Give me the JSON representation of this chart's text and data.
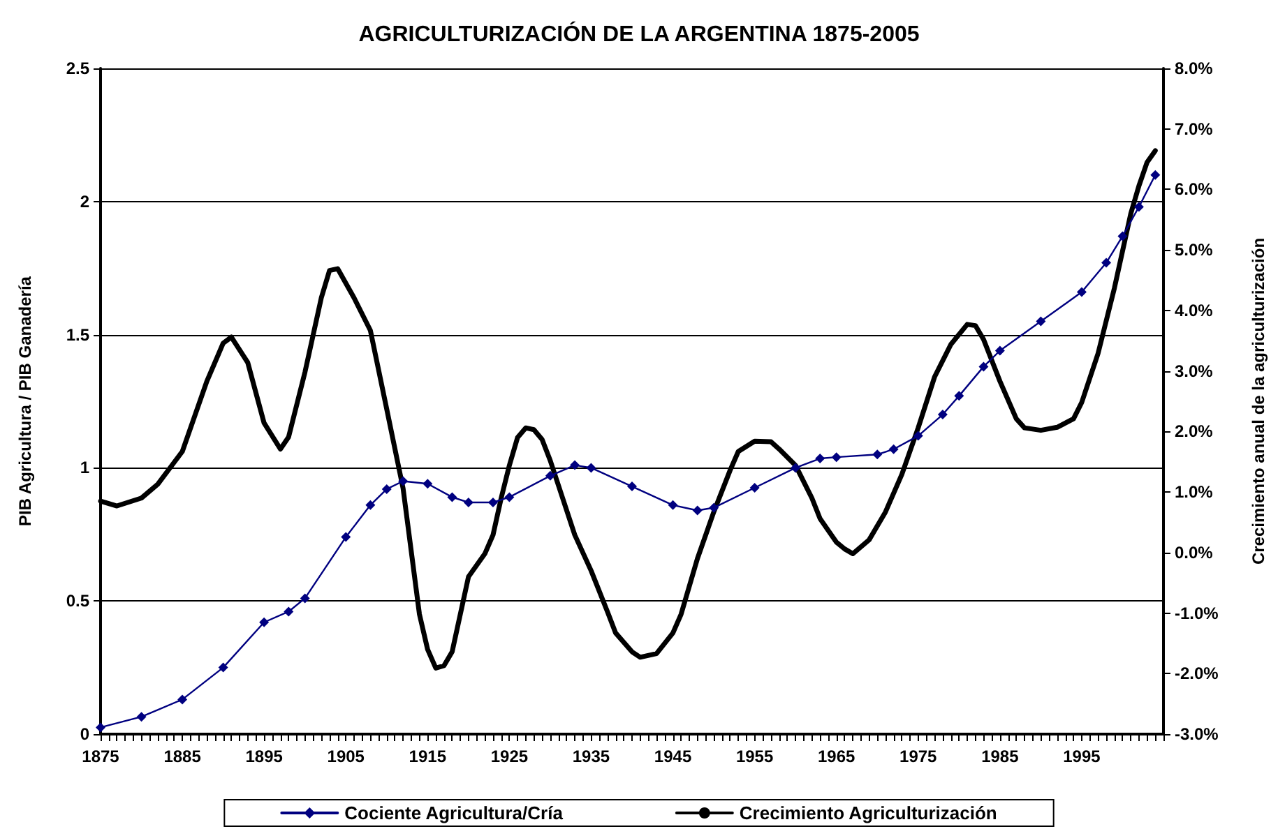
{
  "chart_data": {
    "type": "line",
    "title": "AGRICULTURIZACIÓN DE LA ARGENTINA 1875-2005",
    "ylabel": "PIB Agricultura / PIB Ganadería",
    "y2label": "Crecimiento anual de la agriculturización",
    "series": [
      {
        "name": "Cociente Agricultura/Cría",
        "color": "#000080",
        "marker": "diamond",
        "x": [
          1875,
          1880,
          1885,
          1890,
          1895,
          1898,
          1900,
          1905,
          1908,
          1910,
          1912,
          1915,
          1918,
          1920,
          1923,
          1925,
          1930,
          1933,
          1935,
          1940,
          1945,
          1948,
          1950,
          1955,
          1960,
          1963,
          1965,
          1970,
          1972,
          1975,
          1978,
          1980,
          1983,
          1985,
          1990,
          1995,
          1998,
          2000,
          2002,
          2004
        ],
        "values": [
          0.025,
          0.065,
          0.13,
          0.25,
          0.42,
          0.46,
          0.51,
          0.74,
          0.86,
          0.92,
          0.95,
          0.94,
          0.89,
          0.87,
          0.87,
          0.89,
          0.97,
          1.01,
          1.0,
          0.93,
          0.86,
          0.84,
          0.85,
          0.925,
          1.0,
          1.035,
          1.04,
          1.05,
          1.07,
          1.12,
          1.2,
          1.27,
          1.38,
          1.44,
          1.55,
          1.66,
          1.77,
          1.87,
          1.98,
          2.1
        ]
      },
      {
        "name": "Crecimiento Agriculturización",
        "color": "#000000",
        "marker": "none",
        "axis": "y2",
        "x": [
          1875,
          1877,
          1880,
          1882,
          1885,
          1888,
          1890,
          1891,
          1893,
          1895,
          1897,
          1898,
          1900,
          1902,
          1903,
          1904,
          1906,
          1908,
          1910,
          1912,
          1914,
          1915,
          1916,
          1917,
          1918,
          1920,
          1922,
          1923,
          1924,
          1925,
          1926,
          1927,
          1928,
          1929,
          1930,
          1933,
          1935,
          1937,
          1938,
          1940,
          1941,
          1943,
          1945,
          1946,
          1948,
          1950,
          1952,
          1953,
          1955,
          1957,
          1958,
          1960,
          1962,
          1963,
          1965,
          1966,
          1967,
          1969,
          1971,
          1973,
          1975,
          1977,
          1979,
          1981,
          1982,
          1983,
          1985,
          1987,
          1988,
          1990,
          1992,
          1994,
          1995,
          1997,
          1999,
          2001,
          2002,
          2003,
          2004
        ],
        "values": [
          0.85,
          0.77,
          0.9,
          1.13,
          1.67,
          2.83,
          3.46,
          3.56,
          3.14,
          2.14,
          1.71,
          1.91,
          2.98,
          4.21,
          4.66,
          4.69,
          4.21,
          3.67,
          2.37,
          1.06,
          -1.02,
          -1.6,
          -1.91,
          -1.87,
          -1.64,
          -0.4,
          -0.02,
          0.29,
          0.9,
          1.44,
          1.9,
          2.06,
          2.03,
          1.87,
          1.52,
          0.29,
          -0.3,
          -0.98,
          -1.33,
          -1.64,
          -1.73,
          -1.67,
          -1.33,
          -1.02,
          -0.1,
          0.67,
          1.36,
          1.67,
          1.84,
          1.83,
          1.71,
          1.44,
          0.9,
          0.56,
          0.17,
          0.06,
          -0.02,
          0.21,
          0.67,
          1.29,
          2.06,
          2.9,
          3.44,
          3.77,
          3.75,
          3.52,
          2.83,
          2.21,
          2.06,
          2.02,
          2.07,
          2.21,
          2.48,
          3.29,
          4.37,
          5.6,
          6.06,
          6.45,
          6.64
        ]
      }
    ],
    "xlim": [
      1875,
      2005
    ],
    "xticks": [
      1875,
      {
        "value": 1876,
        "label": null
      },
      {
        "value": 1877,
        "label": null
      },
      {
        "value": 1878,
        "label": null
      },
      {
        "value": 1879,
        "label": null
      },
      {
        "value": 1880,
        "label": null
      },
      {
        "value": 1881,
        "label": null
      },
      {
        "value": 1882,
        "label": null
      },
      {
        "value": 1883,
        "label": null
      },
      {
        "value": 1884,
        "label": null
      },
      1885,
      {
        "value": 1886,
        "label": null
      },
      {
        "value": 1887,
        "label": null
      },
      {
        "value": 1888,
        "label": null
      },
      {
        "value": 1889,
        "label": null
      },
      {
        "value": 1890,
        "label": null
      },
      {
        "value": 1891,
        "label": null
      },
      {
        "value": 1892,
        "label": null
      },
      {
        "value": 1893,
        "label": null
      },
      {
        "value": 1894,
        "label": null
      },
      1895,
      {
        "value": 1896,
        "label": null
      },
      {
        "value": 1897,
        "label": null
      },
      {
        "value": 1898,
        "label": null
      },
      {
        "value": 1899,
        "label": null
      },
      {
        "value": 1900,
        "label": null
      },
      {
        "value": 1901,
        "label": null
      },
      {
        "value": 1902,
        "label": null
      },
      {
        "value": 1903,
        "label": null
      },
      {
        "value": 1904,
        "label": null
      },
      1905,
      {
        "value": 1906,
        "label": null
      },
      {
        "value": 1907,
        "label": null
      },
      {
        "value": 1908,
        "label": null
      },
      {
        "value": 1909,
        "label": null
      },
      {
        "value": 1910,
        "label": null
      },
      {
        "value": 1911,
        "label": null
      },
      {
        "value": 1912,
        "label": null
      },
      {
        "value": 1913,
        "label": null
      },
      {
        "value": 1914,
        "label": null
      },
      1915,
      {
        "value": 1916,
        "label": null
      },
      {
        "value": 1917,
        "label": null
      },
      {
        "value": 1918,
        "label": null
      },
      {
        "value": 1919,
        "label": null
      },
      {
        "value": 1920,
        "label": null
      },
      {
        "value": 1921,
        "label": null
      },
      {
        "value": 1922,
        "label": null
      },
      {
        "value": 1923,
        "label": null
      },
      {
        "value": 1924,
        "label": null
      },
      1925,
      {
        "value": 1926,
        "label": null
      },
      {
        "value": 1927,
        "label": null
      },
      {
        "value": 1928,
        "label": null
      },
      {
        "value": 1929,
        "label": null
      },
      {
        "value": 1930,
        "label": null
      },
      {
        "value": 1931,
        "label": null
      },
      {
        "value": 1932,
        "label": null
      },
      {
        "value": 1933,
        "label": null
      },
      {
        "value": 1934,
        "label": null
      },
      1935,
      {
        "value": 1936,
        "label": null
      },
      {
        "value": 1937,
        "label": null
      },
      {
        "value": 1938,
        "label": null
      },
      {
        "value": 1939,
        "label": null
      },
      {
        "value": 1940,
        "label": null
      },
      {
        "value": 1941,
        "label": null
      },
      {
        "value": 1942,
        "label": null
      },
      {
        "value": 1943,
        "label": null
      },
      {
        "value": 1944,
        "label": null
      },
      1945,
      {
        "value": 1946,
        "label": null
      },
      {
        "value": 1947,
        "label": null
      },
      {
        "value": 1948,
        "label": null
      },
      {
        "value": 1949,
        "label": null
      },
      {
        "value": 1950,
        "label": null
      },
      {
        "value": 1951,
        "label": null
      },
      {
        "value": 1952,
        "label": null
      },
      {
        "value": 1953,
        "label": null
      },
      {
        "value": 1954,
        "label": null
      },
      1955,
      {
        "value": 1956,
        "label": null
      },
      {
        "value": 1957,
        "label": null
      },
      {
        "value": 1958,
        "label": null
      },
      {
        "value": 1959,
        "label": null
      },
      {
        "value": 1960,
        "label": null
      },
      {
        "value": 1961,
        "label": null
      },
      {
        "value": 1962,
        "label": null
      },
      {
        "value": 1963,
        "label": null
      },
      {
        "value": 1964,
        "label": null
      },
      1965,
      {
        "value": 1966,
        "label": null
      },
      {
        "value": 1967,
        "label": null
      },
      {
        "value": 1968,
        "label": null
      },
      {
        "value": 1969,
        "label": null
      },
      {
        "value": 1970,
        "label": null
      },
      {
        "value": 1971,
        "label": null
      },
      {
        "value": 1972,
        "label": null
      },
      {
        "value": 1973,
        "label": null
      },
      {
        "value": 1974,
        "label": null
      },
      1975,
      {
        "value": 1976,
        "label": null
      },
      {
        "value": 1977,
        "label": null
      },
      {
        "value": 1978,
        "label": null
      },
      {
        "value": 1979,
        "label": null
      },
      {
        "value": 1980,
        "label": null
      },
      {
        "value": 1981,
        "label": null
      },
      {
        "value": 1982,
        "label": null
      },
      {
        "value": 1983,
        "label": null
      },
      {
        "value": 1984,
        "label": null
      },
      1985,
      {
        "value": 1986,
        "label": null
      },
      {
        "value": 1987,
        "label": null
      },
      {
        "value": 1988,
        "label": null
      },
      {
        "value": 1989,
        "label": null
      },
      {
        "value": 1990,
        "label": null
      },
      {
        "value": 1991,
        "label": null
      },
      {
        "value": 1992,
        "label": null
      },
      {
        "value": 1993,
        "label": null
      },
      {
        "value": 1994,
        "label": null
      },
      1995,
      {
        "value": 1996,
        "label": null
      },
      {
        "value": 1997,
        "label": null
      },
      {
        "value": 1998,
        "label": null
      },
      {
        "value": 1999,
        "label": null
      },
      {
        "value": 2000,
        "label": null
      },
      {
        "value": 2001,
        "label": null
      },
      {
        "value": 2002,
        "label": null
      },
      {
        "value": 2003,
        "label": null
      },
      {
        "value": 2004,
        "label": null
      },
      {
        "value": 2005,
        "label": null
      }
    ],
    "ylim": [
      0,
      2.5
    ],
    "yticks": [
      0,
      0.5,
      1,
      1.5,
      2,
      2.5
    ],
    "y2lim": [
      -3,
      8
    ],
    "y2ticks": [
      {
        "value": -3,
        "label": "-3.0%"
      },
      {
        "value": -2,
        "label": "-2.0%"
      },
      {
        "value": -1,
        "label": "-1.0%"
      },
      {
        "value": 0,
        "label": "0.0%"
      },
      {
        "value": 1,
        "label": "1.0%"
      },
      {
        "value": 2,
        "label": "2.0%"
      },
      {
        "value": 3,
        "label": "3.0%"
      },
      {
        "value": 4,
        "label": "4.0%"
      },
      {
        "value": 5,
        "label": "5.0%"
      },
      {
        "value": 6,
        "label": "6.0%"
      },
      {
        "value": 7,
        "label": "7.0%"
      },
      {
        "value": 8,
        "label": "8.0%"
      }
    ],
    "grid": "y",
    "legend": "bottom",
    "line_style": "solid"
  }
}
